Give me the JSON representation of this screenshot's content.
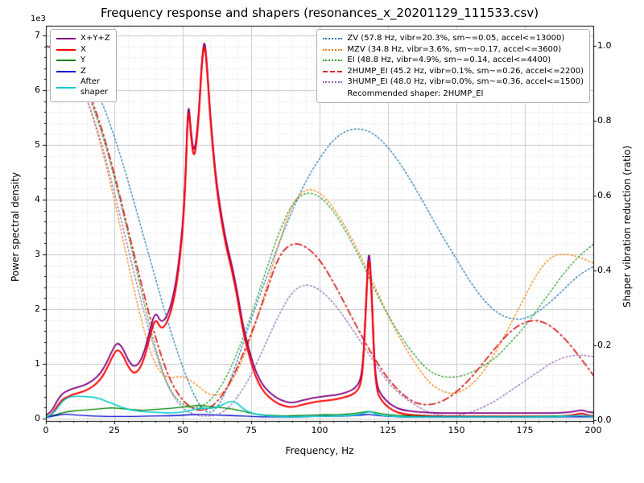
{
  "chart_data": {
    "type": "line",
    "title": "Frequency response and shapers (resonances_x_20201129_111533.csv)",
    "xlabel": "Frequency, Hz",
    "ylabel_left": "Power spectral density",
    "ylabel_right": "Shaper vibration reduction (ratio)",
    "offset_text": "1e3",
    "xlim": [
      0,
      200
    ],
    "ylim_left": [
      0,
      7
    ],
    "y_left_unit": "1e3",
    "ylim_right": [
      0,
      1
    ],
    "x_major_ticks": [
      0,
      25,
      50,
      75,
      100,
      125,
      150,
      175,
      200
    ],
    "x_minor_step": 5,
    "y_left_ticks": [
      0,
      1,
      2,
      3,
      4,
      5,
      6,
      7
    ],
    "y_left_minor_step": 0.2,
    "y_right_ticks": [
      0,
      0.2,
      0.4,
      0.6,
      0.8,
      1.0
    ],
    "y_right_tick_labels": [
      "0.0",
      "0.2",
      "0.4",
      "0.6",
      "0.8",
      "1.0"
    ],
    "grid": "both",
    "legend_note": "Recommended shaper: 2HUMP_EI",
    "series": [
      {
        "name": "ZV (57.8 Hz, vibr=20.3%, sm~=0.05, accel<=13000)",
        "axis": "right",
        "color": "#1f77b4",
        "dash": "dotted",
        "width": 1.3,
        "x_start": 0,
        "x_step": 5,
        "y": [
          1.0,
          0.995,
          0.97,
          0.93,
          0.86,
          0.76,
          0.64,
          0.51,
          0.38,
          0.25,
          0.14,
          0.05,
          0.01,
          0.06,
          0.16,
          0.27,
          0.37,
          0.47,
          0.56,
          0.64,
          0.7,
          0.75,
          0.775,
          0.78,
          0.765,
          0.73,
          0.68,
          0.62,
          0.555,
          0.49,
          0.43,
          0.37,
          0.32,
          0.285,
          0.27,
          0.27,
          0.29,
          0.32,
          0.355,
          0.39,
          0.41
        ]
      },
      {
        "name": "MZV (34.8 Hz, vibr=3.6%, sm~=0.17, accel<=3600)",
        "axis": "right",
        "color": "#ff7f0e",
        "dash": "dotted",
        "width": 1.3,
        "x_start": 0,
        "x_step": 5,
        "y": [
          1.0,
          0.985,
          0.94,
          0.86,
          0.74,
          0.59,
          0.42,
          0.26,
          0.14,
          0.11,
          0.12,
          0.095,
          0.065,
          0.07,
          0.13,
          0.22,
          0.34,
          0.47,
          0.58,
          0.62,
          0.61,
          0.57,
          0.51,
          0.44,
          0.36,
          0.28,
          0.21,
          0.15,
          0.1,
          0.075,
          0.07,
          0.09,
          0.13,
          0.19,
          0.26,
          0.33,
          0.4,
          0.44,
          0.445,
          0.435,
          0.42
        ]
      },
      {
        "name": "EI (48.8 Hz, vibr=4.9%, sm~=0.14, accel<=4400)",
        "axis": "right",
        "color": "#2ca02c",
        "dash": "dotted",
        "width": 1.3,
        "x_start": 0,
        "x_step": 5,
        "y": [
          1.0,
          0.99,
          0.95,
          0.88,
          0.78,
          0.65,
          0.5,
          0.34,
          0.19,
          0.08,
          0.04,
          0.03,
          0.05,
          0.1,
          0.18,
          0.28,
          0.39,
          0.5,
          0.58,
          0.61,
          0.6,
          0.56,
          0.5,
          0.43,
          0.35,
          0.28,
          0.22,
          0.17,
          0.13,
          0.115,
          0.115,
          0.125,
          0.145,
          0.17,
          0.21,
          0.25,
          0.3,
          0.35,
          0.4,
          0.44,
          0.47
        ]
      },
      {
        "name": "2HUMP_EI (45.2 Hz, vibr=0.1%, sm~=0.26, accel<=2200)",
        "axis": "right",
        "color": "#d62728",
        "dash": "dashdot",
        "width": 1.8,
        "x_start": 0,
        "x_step": 5,
        "y": [
          1.0,
          0.99,
          0.96,
          0.89,
          0.79,
          0.66,
          0.51,
          0.36,
          0.22,
          0.11,
          0.05,
          0.025,
          0.03,
          0.07,
          0.14,
          0.23,
          0.33,
          0.44,
          0.475,
          0.465,
          0.43,
          0.37,
          0.3,
          0.23,
          0.165,
          0.11,
          0.07,
          0.045,
          0.04,
          0.05,
          0.075,
          0.11,
          0.155,
          0.2,
          0.24,
          0.263,
          0.268,
          0.25,
          0.215,
          0.17,
          0.12
        ]
      },
      {
        "name": "3HUMP_EI (48.0 Hz, vibr=0.0%, sm~=0.36, accel<=1500)",
        "axis": "right",
        "color": "#9467bd",
        "dash": "dotted",
        "width": 1.3,
        "x_start": 0,
        "x_step": 5,
        "y": [
          1.0,
          0.985,
          0.94,
          0.86,
          0.75,
          0.61,
          0.46,
          0.31,
          0.18,
          0.08,
          0.03,
          0.012,
          0.01,
          0.02,
          0.06,
          0.12,
          0.2,
          0.28,
          0.345,
          0.365,
          0.35,
          0.315,
          0.265,
          0.21,
          0.155,
          0.1,
          0.065,
          0.04,
          0.02,
          0.012,
          0.012,
          0.02,
          0.035,
          0.055,
          0.08,
          0.105,
          0.13,
          0.155,
          0.17,
          0.175,
          0.17
        ]
      },
      {
        "name": "X+Y+Z",
        "axis": "left",
        "color": "#800080",
        "dash": "solid",
        "width": 1.8,
        "x": [
          0,
          2,
          4,
          6,
          8,
          10,
          12,
          14,
          16,
          18,
          20,
          22,
          24,
          26,
          28,
          30,
          32,
          34,
          36,
          38,
          40,
          42,
          44,
          46,
          48,
          50,
          51,
          52,
          53,
          54,
          55,
          56,
          57,
          58,
          59,
          60,
          62,
          64,
          66,
          68,
          70,
          72,
          74,
          76,
          78,
          80,
          83,
          86,
          90,
          94,
          98,
          102,
          106,
          110,
          113,
          115,
          116,
          117,
          118,
          119,
          120,
          121,
          122,
          124,
          127,
          130,
          135,
          140,
          145,
          150,
          155,
          160,
          165,
          170,
          175,
          180,
          185,
          190,
          193,
          196,
          198,
          200
        ],
        "y": [
          0.06,
          0.12,
          0.32,
          0.46,
          0.51,
          0.55,
          0.58,
          0.61,
          0.66,
          0.73,
          0.83,
          1.0,
          1.22,
          1.4,
          1.3,
          1.07,
          0.94,
          1.0,
          1.22,
          1.62,
          1.97,
          1.75,
          1.84,
          2.12,
          2.62,
          3.52,
          4.42,
          5.88,
          5.25,
          4.85,
          5.1,
          5.7,
          6.58,
          6.97,
          6.38,
          5.6,
          4.45,
          3.75,
          3.2,
          2.8,
          2.3,
          1.7,
          1.3,
          0.95,
          0.72,
          0.56,
          0.42,
          0.33,
          0.28,
          0.34,
          0.38,
          0.41,
          0.43,
          0.48,
          0.55,
          0.7,
          1.1,
          2.22,
          3.2,
          2.42,
          1.06,
          0.6,
          0.48,
          0.34,
          0.22,
          0.16,
          0.12,
          0.11,
          0.1,
          0.1,
          0.1,
          0.1,
          0.1,
          0.1,
          0.1,
          0.1,
          0.1,
          0.11,
          0.13,
          0.16,
          0.12,
          0.11
        ]
      },
      {
        "name": "X",
        "axis": "left",
        "color": "#ff0000",
        "dash": "solid",
        "width": 2.0,
        "x": [
          0,
          2,
          4,
          6,
          8,
          10,
          12,
          14,
          16,
          18,
          20,
          22,
          24,
          26,
          28,
          30,
          32,
          34,
          36,
          38,
          40,
          42,
          44,
          46,
          48,
          50,
          51,
          52,
          53,
          54,
          55,
          56,
          57,
          58,
          59,
          60,
          62,
          64,
          66,
          68,
          70,
          72,
          74,
          76,
          78,
          80,
          83,
          86,
          90,
          94,
          98,
          102,
          106,
          110,
          113,
          115,
          116,
          117,
          118,
          119,
          120,
          121,
          122,
          124,
          127,
          130,
          135,
          140,
          145,
          150,
          155,
          160,
          165,
          170,
          175,
          180,
          185,
          190,
          193,
          196,
          198,
          200
        ],
        "y": [
          0.02,
          0.06,
          0.22,
          0.35,
          0.4,
          0.44,
          0.47,
          0.5,
          0.55,
          0.62,
          0.72,
          0.88,
          1.1,
          1.28,
          1.18,
          0.95,
          0.82,
          0.88,
          1.1,
          1.5,
          1.85,
          1.63,
          1.72,
          2.0,
          2.5,
          3.4,
          4.3,
          5.8,
          5.15,
          4.75,
          5.0,
          5.6,
          6.5,
          6.9,
          6.3,
          5.5,
          4.35,
          3.65,
          3.1,
          2.7,
          2.2,
          1.6,
          1.2,
          0.85,
          0.62,
          0.46,
          0.33,
          0.24,
          0.2,
          0.26,
          0.3,
          0.33,
          0.35,
          0.4,
          0.46,
          0.6,
          1.0,
          2.1,
          3.08,
          2.3,
          0.95,
          0.5,
          0.38,
          0.25,
          0.14,
          0.09,
          0.06,
          0.05,
          0.04,
          0.04,
          0.04,
          0.04,
          0.04,
          0.04,
          0.04,
          0.04,
          0.04,
          0.05,
          0.07,
          0.1,
          0.06,
          0.05
        ]
      },
      {
        "name": "Y",
        "axis": "left",
        "color": "#008000",
        "dash": "solid",
        "width": 1.3,
        "x": [
          0,
          4,
          8,
          12,
          16,
          20,
          24,
          28,
          32,
          36,
          40,
          44,
          48,
          52,
          56,
          60,
          64,
          68,
          72,
          76,
          80,
          85,
          90,
          95,
          100,
          105,
          110,
          114,
          118,
          122,
          126,
          130,
          140,
          150,
          160,
          170,
          180,
          190,
          200
        ],
        "y": [
          0.02,
          0.08,
          0.13,
          0.15,
          0.16,
          0.18,
          0.2,
          0.18,
          0.16,
          0.15,
          0.17,
          0.18,
          0.2,
          0.22,
          0.25,
          0.22,
          0.2,
          0.18,
          0.13,
          0.09,
          0.06,
          0.05,
          0.05,
          0.06,
          0.07,
          0.07,
          0.08,
          0.1,
          0.14,
          0.09,
          0.07,
          0.05,
          0.04,
          0.04,
          0.04,
          0.04,
          0.04,
          0.05,
          0.04
        ]
      },
      {
        "name": "Z",
        "axis": "left",
        "color": "#0000cd",
        "dash": "solid",
        "width": 1.3,
        "x": [
          0,
          4,
          6,
          8,
          10,
          15,
          20,
          25,
          30,
          35,
          40,
          45,
          50,
          55,
          60,
          65,
          70,
          75,
          80,
          90,
          100,
          110,
          115,
          118,
          122,
          130,
          140,
          150,
          160,
          170,
          180,
          190,
          200
        ],
        "y": [
          0.02,
          0.06,
          0.08,
          0.08,
          0.07,
          0.05,
          0.04,
          0.04,
          0.04,
          0.04,
          0.05,
          0.05,
          0.06,
          0.08,
          0.07,
          0.06,
          0.05,
          0.04,
          0.03,
          0.03,
          0.04,
          0.05,
          0.06,
          0.08,
          0.05,
          0.03,
          0.03,
          0.03,
          0.03,
          0.03,
          0.03,
          0.03,
          0.03
        ]
      },
      {
        "name": "After\nshaper",
        "axis": "left",
        "color": "#00cccc",
        "dash": "solid",
        "width": 1.6,
        "x": [
          0,
          3,
          5,
          7,
          9,
          12,
          15,
          18,
          21,
          24,
          27,
          30,
          34,
          38,
          42,
          46,
          50,
          54,
          57,
          60,
          63,
          66,
          68,
          70,
          72,
          75,
          80,
          85,
          90,
          95,
          100,
          105,
          110,
          114,
          117,
          119,
          121,
          124,
          128,
          132,
          140,
          150,
          160,
          170,
          180,
          190,
          195,
          200
        ],
        "y": [
          0.02,
          0.1,
          0.25,
          0.36,
          0.4,
          0.41,
          0.4,
          0.39,
          0.34,
          0.28,
          0.22,
          0.17,
          0.13,
          0.12,
          0.11,
          0.1,
          0.12,
          0.16,
          0.2,
          0.18,
          0.22,
          0.29,
          0.32,
          0.28,
          0.18,
          0.1,
          0.05,
          0.04,
          0.03,
          0.04,
          0.04,
          0.05,
          0.05,
          0.07,
          0.11,
          0.13,
          0.07,
          0.05,
          0.04,
          0.03,
          0.03,
          0.03,
          0.03,
          0.03,
          0.03,
          0.04,
          0.06,
          0.04
        ]
      }
    ]
  }
}
